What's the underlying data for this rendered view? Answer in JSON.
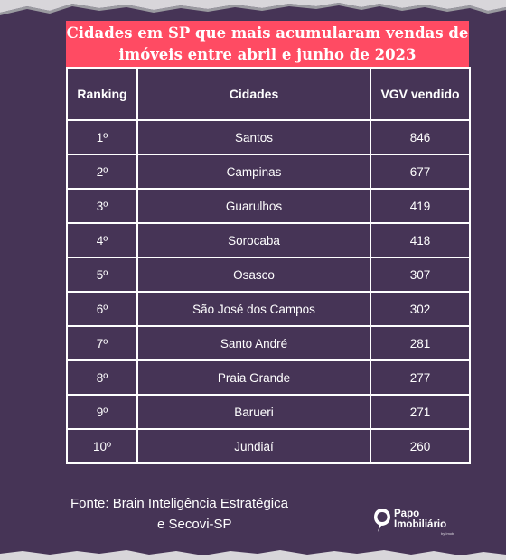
{
  "title": {
    "line1": "Cidades em SP que mais acumularam vendas de",
    "line2": "imóveis entre abril e junho de 2023"
  },
  "table": {
    "headers": [
      "Ranking",
      "Cidades",
      "VGV vendido"
    ],
    "rows": [
      [
        "1º",
        "Santos",
        "846"
      ],
      [
        "2º",
        "Campinas",
        "677"
      ],
      [
        "3º",
        "Guarulhos",
        "419"
      ],
      [
        "4º",
        "Sorocaba",
        "418"
      ],
      [
        "5º",
        "Osasco",
        "307"
      ],
      [
        "6º",
        "São José dos Campos",
        "302"
      ],
      [
        "7º",
        "Santo André",
        "281"
      ],
      [
        "8º",
        "Praia Grande",
        "277"
      ],
      [
        "9º",
        "Barueri",
        "271"
      ],
      [
        "10º",
        "Jundiaí",
        "260"
      ]
    ]
  },
  "source": {
    "line1": "Fonte:  Brain Inteligência Estratégica",
    "line2": "e Secovi-SP"
  },
  "logo": {
    "line1": "Papo",
    "line2": "Imobiliário",
    "sub": "by Imobi",
    "icon": "papo-imobiliario-logo-icon"
  },
  "colors": {
    "background": "#463456",
    "title_bg": "#ff4b63",
    "text": "#ffffff"
  }
}
